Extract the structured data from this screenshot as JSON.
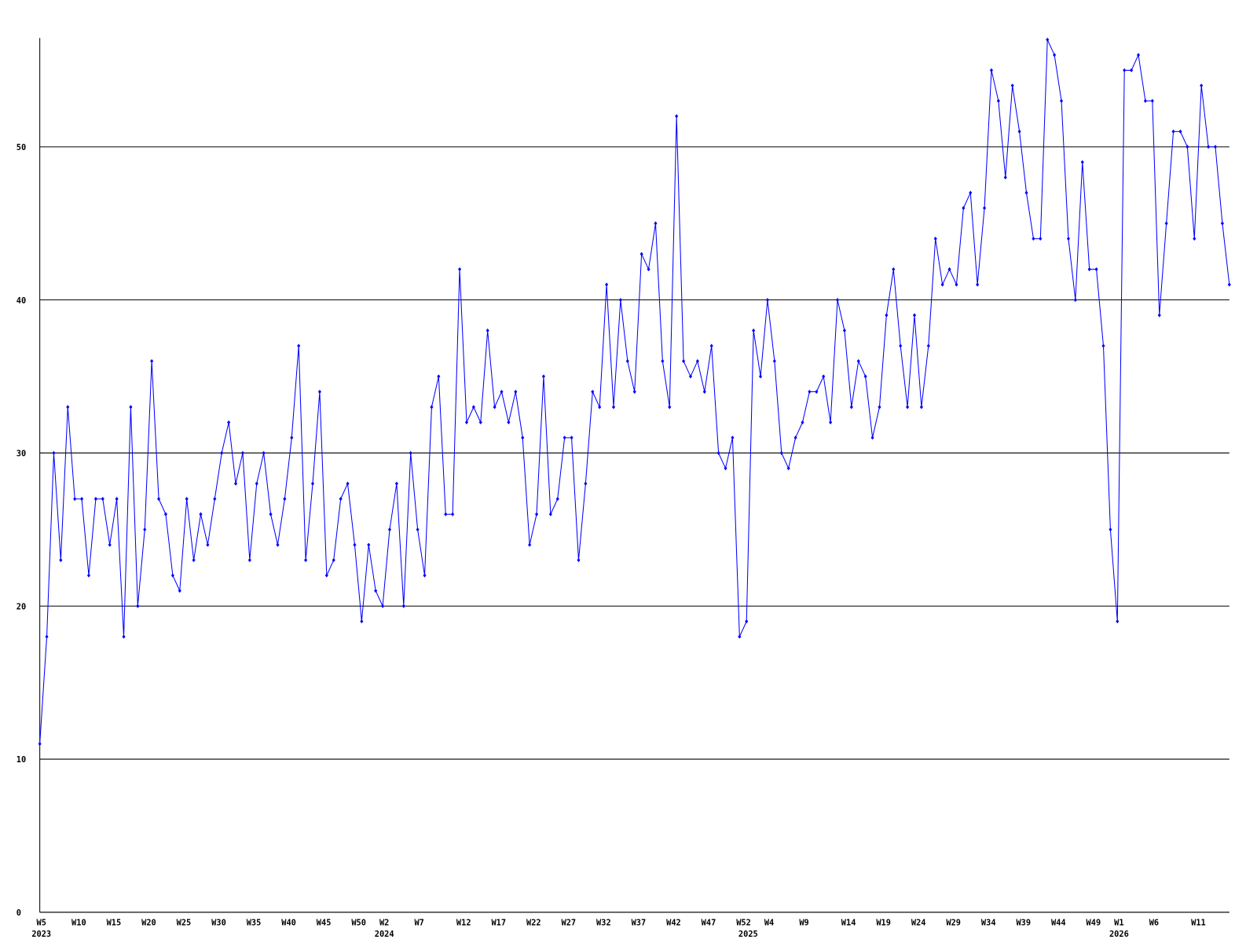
{
  "chart_data": {
    "type": "line",
    "categories": [
      "W5",
      null,
      null,
      null,
      null,
      "W10",
      null,
      null,
      null,
      null,
      "W15",
      null,
      null,
      null,
      null,
      "W20",
      null,
      null,
      null,
      null,
      "W25",
      null,
      null,
      null,
      null,
      "W30",
      null,
      null,
      null,
      null,
      "W35",
      null,
      null,
      null,
      null,
      "W40",
      null,
      null,
      null,
      null,
      "W45",
      null,
      null,
      null,
      null,
      "W50",
      null,
      null,
      null,
      "W2",
      null,
      null,
      null,
      null,
      "W7",
      null,
      null,
      null,
      null,
      null,
      "W12",
      null,
      null,
      null,
      null,
      "W17",
      null,
      null,
      null,
      null,
      "W22",
      null,
      null,
      null,
      null,
      "W27",
      null,
      null,
      null,
      null,
      "W32",
      null,
      null,
      null,
      null,
      "W37",
      null,
      null,
      null,
      null,
      "W42",
      null,
      null,
      null,
      null,
      "W47",
      null,
      null,
      null,
      null,
      "W52",
      null,
      null,
      null,
      "W4",
      null,
      null,
      null,
      null,
      "W9",
      null,
      null,
      null,
      null,
      null,
      "W14",
      null,
      null,
      null,
      null,
      "W19",
      null,
      null,
      null,
      null,
      "W24",
      null,
      null,
      null,
      null,
      "W29",
      null,
      null,
      null,
      null,
      "W34",
      null,
      null,
      null,
      null,
      "W39",
      null,
      null,
      null,
      null,
      "W44",
      null,
      null,
      null,
      null,
      "W49",
      null,
      null,
      null,
      "W1",
      null,
      null,
      null,
      null,
      "W6",
      null,
      null,
      null,
      null,
      null,
      "W11",
      null,
      null,
      null,
      null,
      null
    ],
    "x_year_labels": [
      {
        "index": 0,
        "label": "2023"
      },
      {
        "index": 49,
        "label": "2024"
      },
      {
        "index": 101,
        "label": "2025"
      },
      {
        "index": 154,
        "label": "2026"
      }
    ],
    "series": [
      {
        "color": "#0000ff",
        "values": [
          11,
          18,
          30,
          23,
          33,
          27,
          27,
          22,
          27,
          27,
          24,
          27,
          18,
          33,
          20,
          25,
          36,
          27,
          26,
          22,
          21,
          27,
          23,
          26,
          24,
          27,
          30,
          32,
          28,
          30,
          23,
          28,
          30,
          26,
          24,
          27,
          31,
          37,
          23,
          28,
          34,
          22,
          23,
          27,
          28,
          24,
          19,
          24,
          21,
          20,
          25,
          28,
          20,
          30,
          25,
          22,
          33,
          35,
          26,
          26,
          42,
          32,
          33,
          32,
          38,
          33,
          34,
          32,
          34,
          31,
          24,
          26,
          35,
          26,
          27,
          31,
          31,
          23,
          28,
          34,
          33,
          41,
          33,
          40,
          36,
          34,
          43,
          42,
          45,
          36,
          33,
          52,
          36,
          35,
          36,
          34,
          37,
          30,
          29,
          31,
          18,
          19,
          38,
          35,
          40,
          36,
          30,
          29,
          31,
          32,
          34,
          34,
          35,
          32,
          40,
          38,
          33,
          36,
          35,
          31,
          33,
          39,
          42,
          37,
          33,
          39,
          33,
          37,
          44,
          41,
          42,
          41,
          46,
          47,
          41,
          46,
          55,
          53,
          48,
          54,
          51,
          47,
          44,
          44,
          57,
          56,
          53,
          44,
          40,
          49,
          42,
          42,
          37,
          25,
          19,
          55,
          55,
          56,
          53,
          53,
          39,
          45,
          51,
          51,
          50,
          44,
          54,
          50,
          50,
          45,
          41
        ]
      }
    ],
    "ylim": [
      0,
      57
    ],
    "yticks": [
      0,
      10,
      20,
      30,
      40,
      50
    ],
    "grid": true
  }
}
